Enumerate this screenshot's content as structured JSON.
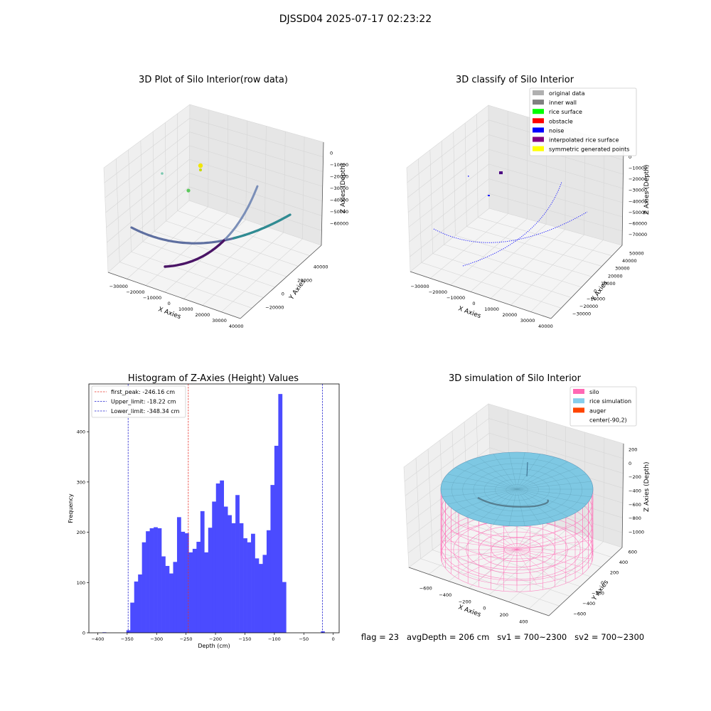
{
  "figure": {
    "suptitle": "DJSSD04 2025-07-17 02:23:22",
    "footer": "flag = 23   avgDepth = 206 cm   sv1 = 700~2300   sv2 = 700~2300"
  },
  "colors": {
    "hist_bar": "#4b4bff",
    "peak_line": "#e8322a",
    "limit_line": "#2020d0",
    "silo_mesh": "#ff69b4",
    "rice_surface": "#7ec8e3",
    "axis_pane_left": "#efefef",
    "axis_pane_right": "#e6e6e6",
    "axis_pane_floor": "#f4f4f4"
  },
  "plot1": {
    "title": "3D Plot of Silo Interior(row data)",
    "xlabel": "X Axies",
    "ylabel": "Y Axies",
    "zlabel": "Z Axies (Depth)",
    "xticks": [
      "−30000",
      "−20000",
      "−10000",
      "0",
      "10000",
      "20000",
      "30000",
      "40000"
    ],
    "yticks": [
      "−20000",
      "0",
      "20000",
      "40000"
    ],
    "zticks": [
      "0",
      "−10000",
      "−20000",
      "−30000",
      "−40000",
      "−50000",
      "−60000"
    ]
  },
  "plot2": {
    "title": "3D classify of Silo Interior",
    "xlabel": "X Axies",
    "ylabel": "Y Axies",
    "zlabel": "Z Axies (Depth)",
    "xticks": [
      "−30000",
      "−20000",
      "−10000",
      "0",
      "10000",
      "20000",
      "30000",
      "40000"
    ],
    "yticks": [
      "−30000",
      "−20000",
      "−10000",
      "0",
      "10000",
      "20000",
      "30000",
      "40000",
      "50000"
    ],
    "zticks": [
      "0",
      "−10000",
      "−20000",
      "−30000",
      "−40000",
      "−50000",
      "−60000",
      "−70000"
    ],
    "legend": [
      {
        "label": "original data",
        "color": "#b0b0b0"
      },
      {
        "label": "inner wall",
        "color": "#808080"
      },
      {
        "label": "rice surface",
        "color": "#00ff00"
      },
      {
        "label": "obstacle",
        "color": "#ff0000"
      },
      {
        "label": "noise",
        "color": "#0000ff"
      },
      {
        "label": "interpolated rice surface",
        "color": "#800080"
      },
      {
        "label": "symmetric generated points",
        "color": "#ffff00"
      }
    ]
  },
  "plot4": {
    "title": "3D simulation of Silo Interior",
    "xlabel": "X Axies",
    "ylabel": "Y Axies",
    "zlabel": "Z Axies (Depth)",
    "xticks": [
      "−600",
      "−400",
      "−200",
      "0",
      "200",
      "400"
    ],
    "yticks": [
      "−600",
      "−400",
      "−200",
      "0",
      "200",
      "400",
      "600"
    ],
    "zticks": [
      "200",
      "0",
      "−200",
      "−400",
      "−600",
      "−800",
      "−1000"
    ],
    "legend": [
      {
        "label": "silo",
        "color": "#ff69b4"
      },
      {
        "label": "rice simulation",
        "color": "#87ceeb"
      },
      {
        "label": "auger",
        "color": "#ff4500"
      },
      {
        "label": "center(-90,2)",
        "color": ""
      }
    ]
  },
  "chart_data": {
    "type": "bar",
    "title": "Histogram of Z-Axies (Height) Values",
    "xlabel": "Depth (cm)",
    "ylabel": "Frequency",
    "xlim": [
      -415,
      10
    ],
    "ylim": [
      0,
      495
    ],
    "xticks": [
      -400,
      -350,
      -300,
      -250,
      -200,
      -150,
      -100,
      -50,
      0
    ],
    "yticks": [
      0,
      100,
      200,
      300,
      400
    ],
    "grid": false,
    "legend_position": "top-left",
    "bins": {
      "start": -351.3,
      "width": 6.614
    },
    "values": [
      5,
      60,
      102,
      116,
      180,
      202,
      208,
      210,
      208,
      152,
      133,
      118,
      141,
      230,
      201,
      198,
      160,
      167,
      181,
      242,
      160,
      209,
      261,
      297,
      303,
      251,
      234,
      218,
      274,
      218,
      188,
      180,
      197,
      148,
      137,
      155,
      204,
      294,
      372,
      475,
      101
    ],
    "outlier_bins": [
      {
        "start": -392,
        "width": 6.614,
        "value": 1
      },
      {
        "start": -21.0,
        "width": 6.614,
        "value": 3
      }
    ],
    "vlines": [
      {
        "label": "first_peak: -246.16 cm",
        "x": -246.16,
        "style": "dashed",
        "color": "#e8322a"
      },
      {
        "label": "Upper_limit: -18.22 cm",
        "x": -18.22,
        "style": "dashed",
        "color": "#2020d0"
      },
      {
        "label": "Lower_limit: -348.34 cm",
        "x": -348.34,
        "style": "dashed",
        "color": "#2020d0"
      }
    ]
  }
}
